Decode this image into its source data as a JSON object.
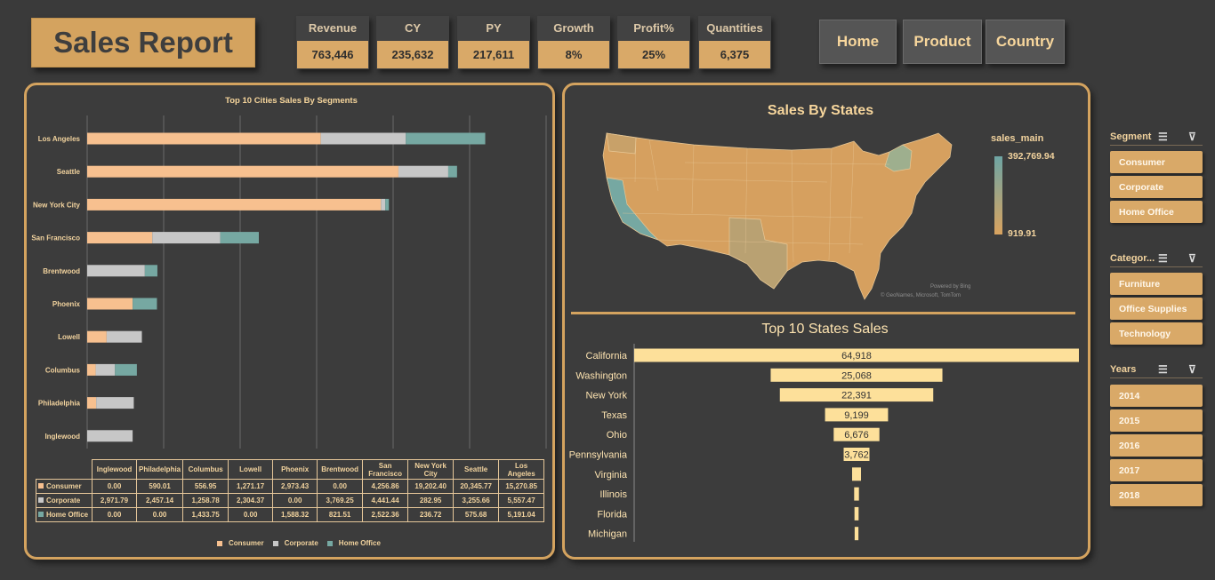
{
  "header": {
    "title": "Sales Report"
  },
  "kpis": [
    {
      "label": "Revenue",
      "value": "763,446"
    },
    {
      "label": "CY",
      "value": "235,632"
    },
    {
      "label": "PY",
      "value": "217,611"
    },
    {
      "label": "Growth",
      "value": "8%"
    },
    {
      "label": "Profit%",
      "value": "25%"
    },
    {
      "label": "Quantities",
      "value": "6,375"
    }
  ],
  "nav": [
    "Home",
    "Product",
    "Country"
  ],
  "colors": {
    "consumer": "#f7c08f",
    "corporate": "#c7c7c7",
    "home_office": "#76a8a2",
    "accent": "#d4a35f",
    "bar_yellow": "#fde09a"
  },
  "cities_chart": {
    "title": "Top 10 Cities Sales By Segments",
    "legend": [
      "Consumer",
      "Corporate",
      "Home Office"
    ]
  },
  "chart_data": [
    {
      "type": "bar",
      "title": "Top 10 Cities Sales By Segments",
      "categories": [
        "Los Angeles",
        "Seattle",
        "New York City",
        "San Francisco",
        "Brentwood",
        "Phoenix",
        "Lowell",
        "Columbus",
        "Philadelphia",
        "Inglewood"
      ],
      "series": [
        {
          "name": "Consumer",
          "values": [
            15270.85,
            20345.77,
            19202.4,
            4256.86,
            0.0,
            2973.43,
            1271.17,
            556.95,
            590.01,
            0.0
          ]
        },
        {
          "name": "Corporate",
          "values": [
            5557.47,
            3255.66,
            282.95,
            4441.44,
            3769.25,
            0.0,
            2304.37,
            1258.78,
            2457.14,
            2971.79
          ]
        },
        {
          "name": "Home Office",
          "values": [
            5191.04,
            575.68,
            236.72,
            2522.36,
            821.51,
            1588.32,
            0.0,
            1433.75,
            0.0,
            0.0
          ]
        }
      ],
      "stacked": true,
      "orientation": "horizontal",
      "legend_position": "bottom"
    },
    {
      "type": "bar",
      "title": "Top 10  States Sales",
      "categories": [
        "California",
        "Washington",
        "New York",
        "Texas",
        "Ohio",
        "Pennsylvania",
        "Virginia",
        "Illinois",
        "Florida",
        "Michigan"
      ],
      "values": [
        64918,
        25068,
        22391,
        9199,
        6676,
        3762,
        1300,
        700,
        600,
        550
      ],
      "data_labels": [
        "64,918",
        "25,068",
        "22,391",
        "9,199",
        "6,676",
        "3,762",
        "",
        "",
        "",
        ""
      ],
      "orientation": "horizontal",
      "centered": true
    }
  ],
  "data_table": {
    "columns": [
      "Inglewood",
      "Philadelphia",
      "Columbus",
      "Lowell",
      "Phoenix",
      "Brentwood",
      "San Francisco",
      "New York City",
      "Seattle",
      "Los Angeles"
    ],
    "rows": [
      {
        "label": "Consumer",
        "cells": [
          "0.00",
          "590.01",
          "556.95",
          "1,271.17",
          "2,973.43",
          "0.00",
          "4,256.86",
          "19,202.40",
          "20,345.77",
          "15,270.85"
        ]
      },
      {
        "label": "Corporate",
        "cells": [
          "2,971.79",
          "2,457.14",
          "1,258.78",
          "2,304.37",
          "0.00",
          "3,769.25",
          "4,441.44",
          "282.95",
          "3,255.66",
          "5,557.47"
        ]
      },
      {
        "label": "Home Office",
        "cells": [
          "0.00",
          "0.00",
          "1,433.75",
          "0.00",
          "1,588.32",
          "821.51",
          "2,522.36",
          "236.72",
          "575.68",
          "5,191.04"
        ]
      }
    ]
  },
  "map": {
    "title": "Sales By States",
    "legend_title": "sales_main",
    "max_label": "392,769.94",
    "min_label": "919.91",
    "attribution_1": "Powered by Bing",
    "attribution_2": "© GeoNames, Microsoft, TomTom"
  },
  "slicers": {
    "segment": {
      "title": "Segment",
      "items": [
        "Consumer",
        "Corporate",
        "Home Office"
      ]
    },
    "category": {
      "title": "Categor...",
      "items": [
        "Furniture",
        "Office Supplies",
        "Technology"
      ]
    },
    "years": {
      "title": "Years",
      "items": [
        "2014",
        "2015",
        "2016",
        "2017",
        "2018"
      ]
    }
  }
}
